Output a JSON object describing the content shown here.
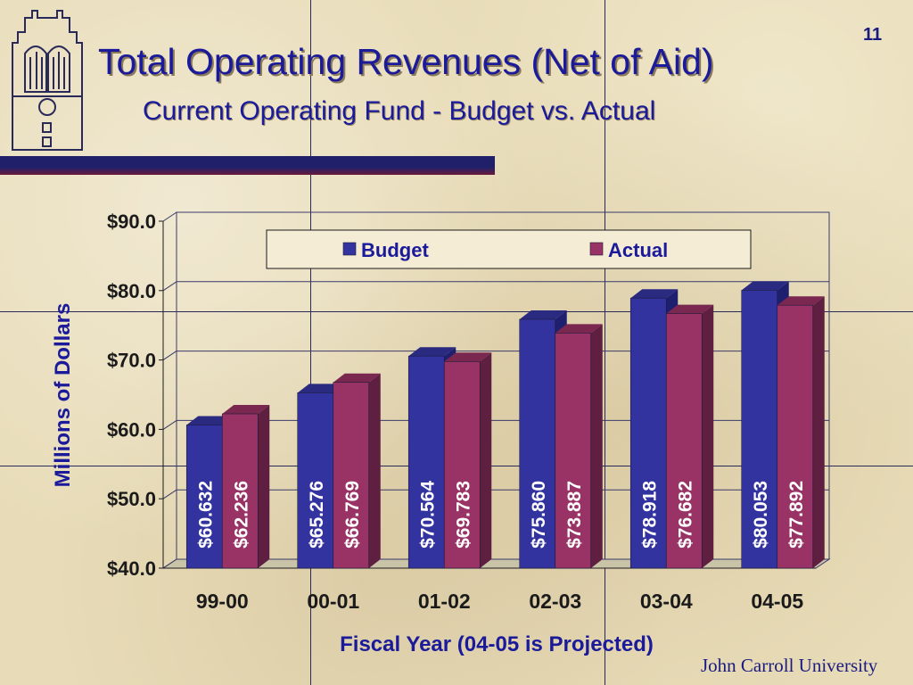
{
  "slide": {
    "number": "11",
    "title": "Total Operating Revenues (Net of Aid)",
    "subtitle": "Current Operating Fund - Budget vs. Actual",
    "footer": "John Carroll University"
  },
  "colors": {
    "title": "#1a1a9a",
    "budget": "#3333a0",
    "actual": "#993366",
    "background": "#e8dcb8"
  },
  "chart_data": {
    "type": "bar",
    "categories": [
      "99-00",
      "00-01",
      "01-02",
      "02-03",
      "03-04",
      "04-05"
    ],
    "series": [
      {
        "name": "Budget",
        "values": [
          60.632,
          65.276,
          70.564,
          75.86,
          78.918,
          80.053
        ],
        "labels": [
          "$60.632",
          "$65.276",
          "$70.564",
          "$75.860",
          "$78.918",
          "$80.053"
        ]
      },
      {
        "name": "Actual",
        "values": [
          62.236,
          66.769,
          69.783,
          73.887,
          76.682,
          77.892
        ],
        "labels": [
          "$62.236",
          "$66.769",
          "$69.783",
          "$73.887",
          "$76.682",
          "$77.892"
        ]
      }
    ],
    "xlabel": "Fiscal Year (04-05 is Projected)",
    "ylabel": "Millions of Dollars",
    "ylim": [
      40,
      90
    ],
    "yticks": [
      40,
      50,
      60,
      70,
      80,
      90
    ],
    "ytick_labels": [
      "$40.0",
      "$50.0",
      "$60.0",
      "$70.0",
      "$80.0",
      "$90.0"
    ],
    "legend": "top",
    "grid": true,
    "style": "3d-clustered"
  }
}
